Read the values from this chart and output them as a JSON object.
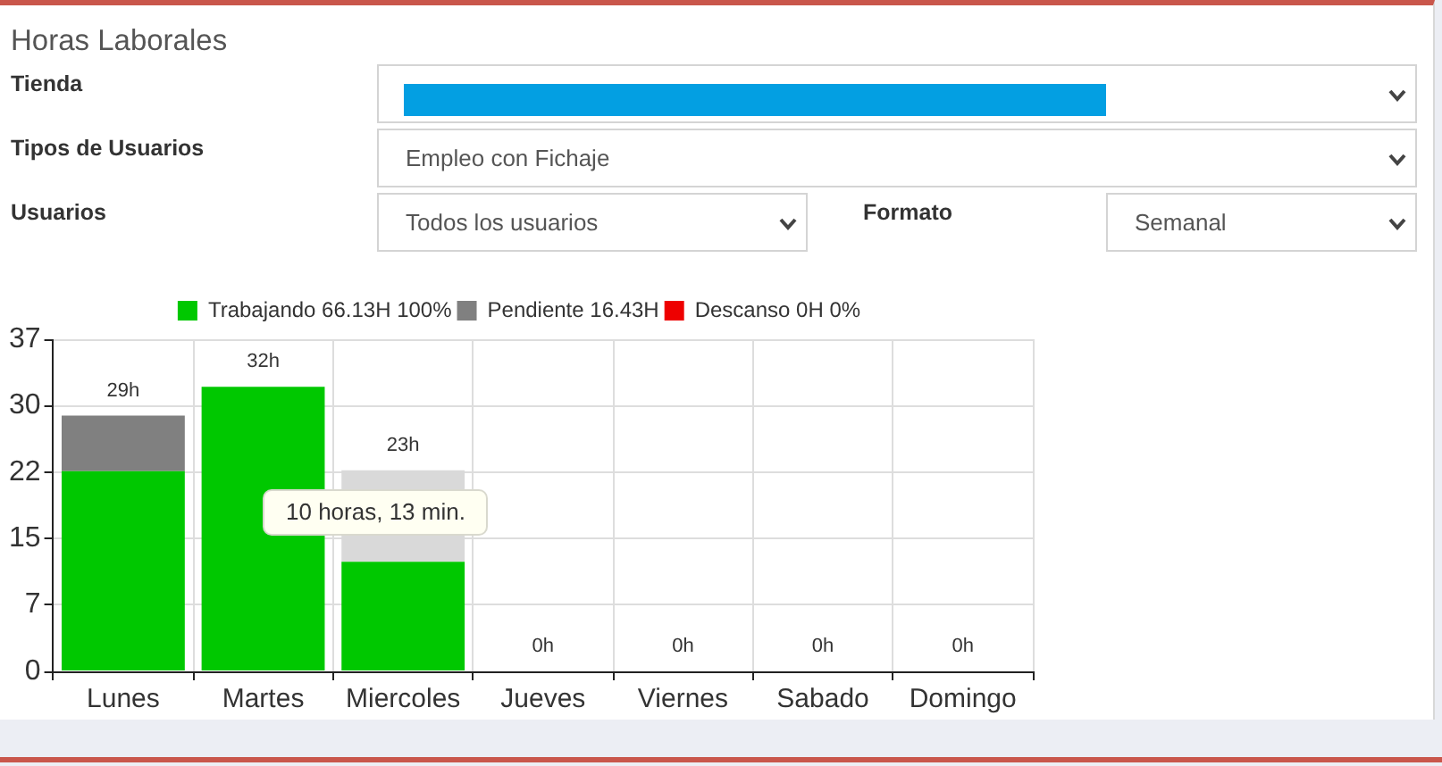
{
  "chart_data": {
    "type": "bar",
    "title": "Horas Laborales",
    "categories": [
      "Lunes",
      "Martes",
      "Miercoles",
      "Jueves",
      "Viernes",
      "Sabado",
      "Domingo"
    ],
    "stacked": true,
    "series": [
      {
        "name": "Trabajando 66.13H 100%",
        "color": "#00c800",
        "values": [
          22.3,
          31.7,
          12.2,
          0,
          0,
          0,
          0
        ]
      },
      {
        "name": "Pendiente 16.43H",
        "color": "#808080",
        "colors": [
          "#808080",
          "#808080",
          "#d9d9d9",
          "#808080",
          "#808080",
          "#808080",
          "#808080"
        ],
        "values": [
          6.2,
          0,
          10.2,
          0,
          0,
          0,
          0
        ]
      },
      {
        "name": "Descanso 0H 0%",
        "color": "#ee0000",
        "values": [
          0,
          0,
          0,
          0,
          0,
          0,
          0
        ]
      }
    ],
    "ylim": [
      0,
      37
    ],
    "yticks": [
      0,
      {
        "value": 7.4,
        "label": "7"
      },
      {
        "value": 14.8,
        "label": "15"
      },
      {
        "value": 22.2,
        "label": "22"
      },
      {
        "value": 29.6,
        "label": "30"
      },
      37
    ],
    "grid": true,
    "legend": "top",
    "totals": [
      "29h",
      "32h",
      "23h",
      "0h",
      "0h",
      "0h",
      "0h"
    ],
    "annotations": [
      "10 horas, 13 min.",
      "Tienda",
      "Tipos de Usuarios",
      "Empleo con Fichaje",
      "Usuarios",
      "Todos los usuarios",
      "Formato",
      "Semanal"
    ]
  }
}
